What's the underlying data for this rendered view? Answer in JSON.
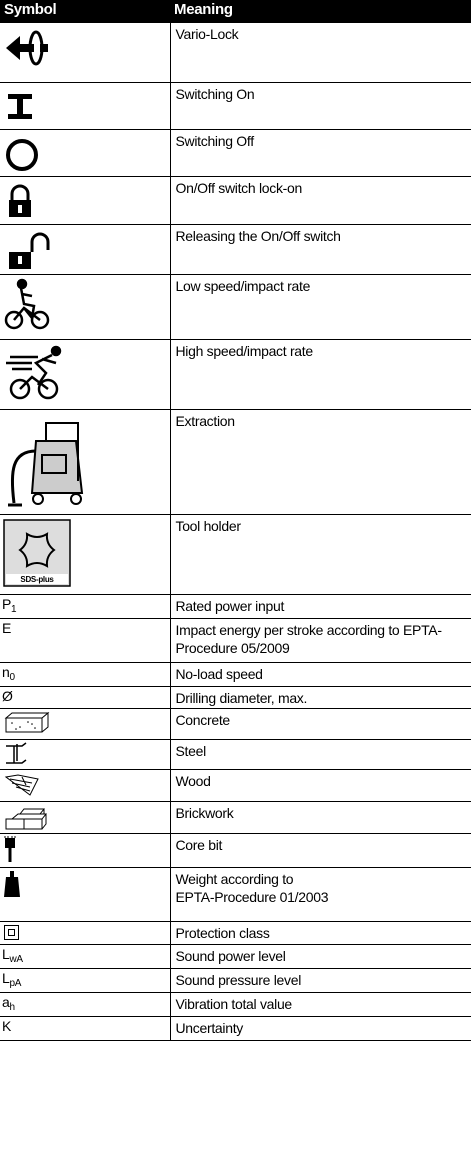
{
  "table": {
    "header": [
      "Symbol",
      "Meaning"
    ],
    "rows": [
      {
        "meaning": "Vario-Lock"
      },
      {
        "meaning": "Switching On"
      },
      {
        "meaning": "Switching Off"
      },
      {
        "meaning": "On/Off switch lock-on"
      },
      {
        "meaning": "Releasing the On/Off switch"
      },
      {
        "meaning": "Low speed/impact rate"
      },
      {
        "meaning": "High speed/impact rate"
      },
      {
        "meaning": "Extraction"
      },
      {
        "symbol_label": "SDS-plus",
        "meaning": "Tool holder"
      },
      {
        "symbol": "P",
        "symbol_sub": "1",
        "meaning": "Rated power input"
      },
      {
        "symbol": "E",
        "meaning": "Impact energy per stroke according to EPTA-Procedure 05/2009"
      },
      {
        "symbol": "n",
        "symbol_sub": "0",
        "meaning": "No-load speed"
      },
      {
        "symbol": "Ø",
        "meaning": "Drilling diameter, max."
      },
      {
        "meaning": "Concrete"
      },
      {
        "meaning": "Steel"
      },
      {
        "meaning": "Wood"
      },
      {
        "meaning": "Brickwork"
      },
      {
        "meaning": "Core bit"
      },
      {
        "meaning": "Weight according to\nEPTA-Procedure 01/2003"
      },
      {
        "meaning": "Protection class"
      },
      {
        "symbol": "L",
        "symbol_sub": "wA",
        "meaning": "Sound power level"
      },
      {
        "symbol": "L",
        "symbol_sub": "pA",
        "meaning": "Sound pressure level"
      },
      {
        "symbol": "a",
        "symbol_sub": "h",
        "meaning": "Vibration total value"
      },
      {
        "symbol": "K",
        "meaning": "Uncertainty"
      }
    ]
  }
}
